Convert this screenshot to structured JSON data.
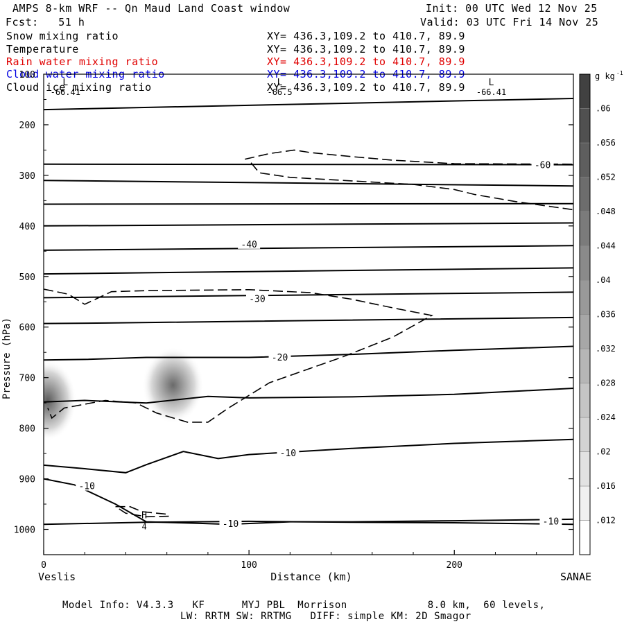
{
  "header": {
    "title": "AMPS 8-km WRF -- Qn Maud Land Coast window",
    "init": "Init: 00 UTC Wed 12 Nov 25",
    "fcst": "Fcst:   51 h",
    "valid": "Valid: 03 UTC Fri 14 Nov 25"
  },
  "fields": [
    {
      "name": "Snow mixing ratio",
      "xy": "XY= 436.3,109.2 to 410.7, 89.9",
      "color": "#000000"
    },
    {
      "name": "Temperature",
      "xy": "XY= 436.3,109.2 to 410.7, 89.9",
      "color": "#000000"
    },
    {
      "name": "Rain water mixing ratio",
      "xy": "XY= 436.3,109.2 to 410.7, 89.9",
      "color": "#e00000"
    },
    {
      "name": "Cloud water mixing ratio",
      "xy": "XY= 436.3,109.2 to 410.7, 89.9",
      "color": "#0000e0"
    },
    {
      "name": "Cloud ice mixing ratio",
      "xy": "XY= 436.3,109.2 to 410.7, 89.9",
      "color": "#000000"
    }
  ],
  "chart_data": {
    "type": "cross-section",
    "xlabel": "Distance (km)",
    "ylabel": "Pressure (hPa)",
    "xlim": [
      0,
      258
    ],
    "ylim": [
      1050,
      100
    ],
    "x_ticks": [
      0,
      100,
      200
    ],
    "y_ticks": [
      200,
      300,
      400,
      500,
      600,
      700,
      800,
      900,
      1000
    ],
    "y_top_label": "100",
    "endpoints": {
      "left": "Veslis",
      "right": "SANAE"
    },
    "colorbar": {
      "unit": "g kg",
      "unit_exp": "-1",
      "levels": [
        ".012",
        ".016",
        ".02",
        ".024",
        ".028",
        ".032",
        ".036",
        ".04",
        ".044",
        ".048",
        ".052",
        ".056",
        ".06"
      ]
    },
    "lows": [
      {
        "symbol": "L",
        "value": "-66.41",
        "x": 18,
        "p": 130
      },
      {
        "symbol": "L",
        "value": "-66.5",
        "x": 115,
        "p": 130
      },
      {
        "symbol": "L",
        "value": "-66.41",
        "x": 218,
        "p": 130
      }
    ],
    "highs": [
      {
        "symbol": "H",
        "value": "4",
        "x": 49,
        "p": 975
      }
    ],
    "isotherm_labels": [
      {
        "text": "-60",
        "x": 243,
        "p": 280
      },
      {
        "text": "-40",
        "x": 100,
        "p": 437
      },
      {
        "text": "-30",
        "x": 104,
        "p": 545
      },
      {
        "text": "-20",
        "x": 115,
        "p": 661
      },
      {
        "text": "-10",
        "x": 119,
        "p": 850
      },
      {
        "text": "-10",
        "x": 21,
        "p": 915
      },
      {
        "text": "-10",
        "x": 91,
        "p": 990
      },
      {
        "text": "-10",
        "x": 247,
        "p": 985
      }
    ],
    "isotherms": [
      {
        "x": [
          0,
          258
        ],
        "p": [
          170,
          148
        ]
      },
      {
        "x": [
          0,
          258
        ],
        "p": [
          278,
          279
        ]
      },
      {
        "x": [
          0,
          258
        ],
        "p": [
          310,
          321
        ]
      },
      {
        "x": [
          0,
          258
        ],
        "p": [
          357,
          356
        ]
      },
      {
        "x": [
          0,
          258
        ],
        "p": [
          400,
          394
        ]
      },
      {
        "x": [
          0,
          258
        ],
        "p": [
          448,
          439
        ]
      },
      {
        "x": [
          0,
          258
        ],
        "p": [
          495,
          483
        ]
      },
      {
        "x": [
          0,
          258
        ],
        "p": [
          542,
          531
        ]
      },
      {
        "x": [
          0,
          30,
          258
        ],
        "p": [
          593,
          592,
          581
        ]
      },
      {
        "x": [
          0,
          20,
          50,
          100,
          150,
          200,
          258
        ],
        "p": [
          665,
          664,
          660,
          660,
          654,
          646,
          638
        ]
      },
      {
        "x": [
          0,
          20,
          50,
          80,
          100,
          150,
          200,
          258
        ],
        "p": [
          748,
          745,
          750,
          737,
          740,
          738,
          733,
          721
        ]
      },
      {
        "x": [
          0,
          20,
          40,
          50,
          68,
          85,
          100,
          150,
          200,
          258
        ],
        "p": [
          873,
          880,
          888,
          872,
          846,
          860,
          852,
          840,
          830,
          822
        ]
      },
      {
        "x": [
          0,
          15,
          35,
          50,
          75,
          90,
          120,
          150,
          200,
          258
        ],
        "p": [
          900,
          912,
          950,
          985,
          988,
          990,
          985,
          985,
          983,
          980
        ]
      },
      {
        "x": [
          0,
          50,
          100,
          150,
          200,
          258
        ],
        "p": [
          990,
          986,
          984,
          986,
          987,
          990
        ]
      }
    ],
    "dashed_contours": [
      {
        "x": [
          98,
          110,
          122,
          130,
          150,
          170,
          200,
          258
        ],
        "p": [
          268,
          257,
          250,
          255,
          263,
          270,
          277,
          278
        ]
      },
      {
        "x": [
          101,
          105,
          120,
          150,
          180,
          200,
          210,
          230,
          258
        ],
        "p": [
          275,
          295,
          304,
          311,
          318,
          328,
          338,
          352,
          368
        ]
      },
      {
        "x": [
          0,
          12,
          20,
          33,
          50,
          100,
          130,
          150,
          170,
          189,
          170,
          145,
          110,
          90,
          80,
          70,
          55,
          45,
          30,
          10,
          4,
          2
        ],
        "p": [
          525,
          535,
          555,
          530,
          528,
          526,
          532,
          545,
          562,
          577,
          620,
          660,
          710,
          760,
          788,
          788,
          770,
          750,
          745,
          760,
          780,
          760
        ]
      },
      {
        "x": [
          35,
          42,
          48,
          60,
          61,
          50,
          40,
          35
        ],
        "p": [
          955,
          955,
          965,
          970,
          974,
          975,
          968,
          955
        ]
      }
    ],
    "shaded_blobs": [
      {
        "x": 2,
        "p": 745,
        "rx": 14,
        "rp": 80,
        "value": 0.045
      },
      {
        "x": 63,
        "p": 715,
        "rx": 15,
        "rp": 75,
        "value": 0.034
      }
    ]
  },
  "footer": {
    "line1": "Model Info: V4.3.3   KF      MYJ PBL  Morrison             8.0 km,  60 levels,",
    "line2": "LW: RRTM SW: RRTMG   DIFF: simple KM: 2D Smagor"
  }
}
